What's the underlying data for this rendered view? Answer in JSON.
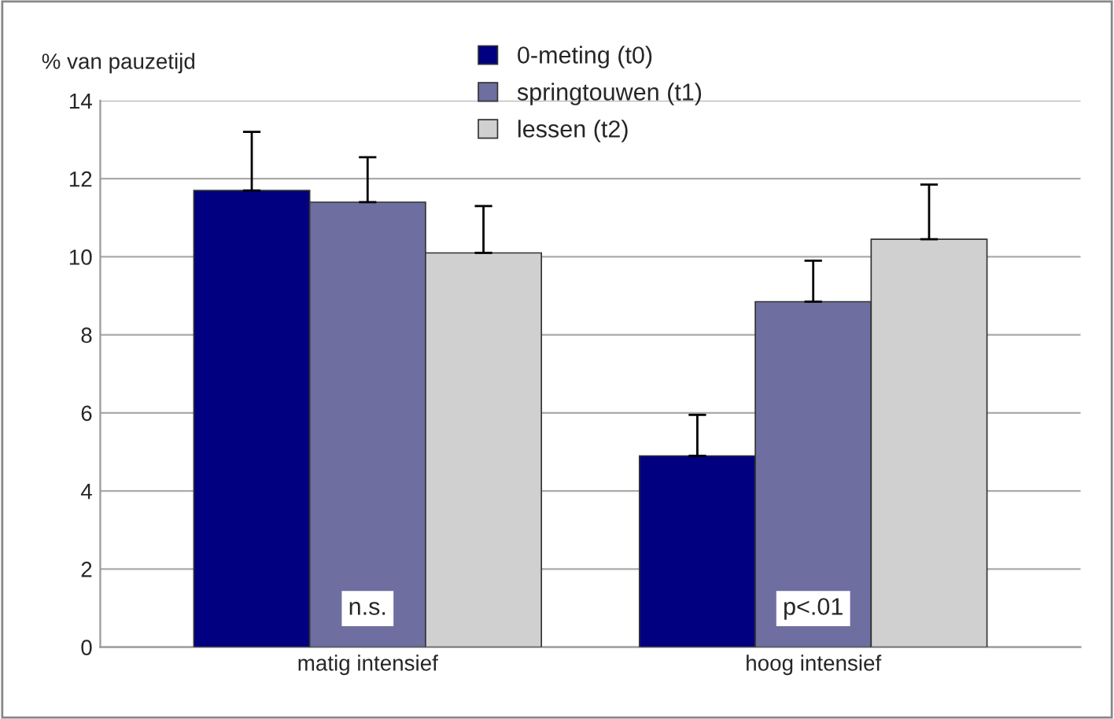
{
  "chart_data": {
    "type": "bar",
    "ylabel": "% van pauzetijd",
    "categories": [
      "matig intensief",
      "hoog intensief"
    ],
    "series": [
      {
        "name": "0-meting (t0)",
        "color": "#000080",
        "values": [
          11.7,
          4.9
        ],
        "errors": [
          [
            11.7,
            13.2
          ],
          [
            4.9,
            5.95
          ]
        ]
      },
      {
        "name": "springtouwen (t1)",
        "color": "#6e6fa0",
        "values": [
          11.4,
          8.85
        ],
        "errors": [
          [
            11.4,
            12.55
          ],
          [
            8.85,
            9.9
          ]
        ]
      },
      {
        "name": "lessen (t2)",
        "color": "#d0d0d0",
        "values": [
          10.1,
          10.45
        ],
        "errors": [
          [
            10.1,
            11.3
          ],
          [
            10.45,
            11.85
          ]
        ]
      }
    ],
    "annotations": [
      "n.s.",
      "p<.01"
    ],
    "ylim": [
      0,
      14
    ],
    "yticks": [
      0,
      2,
      4,
      6,
      8,
      10,
      12,
      14
    ],
    "grid": "y",
    "legend": "top"
  }
}
